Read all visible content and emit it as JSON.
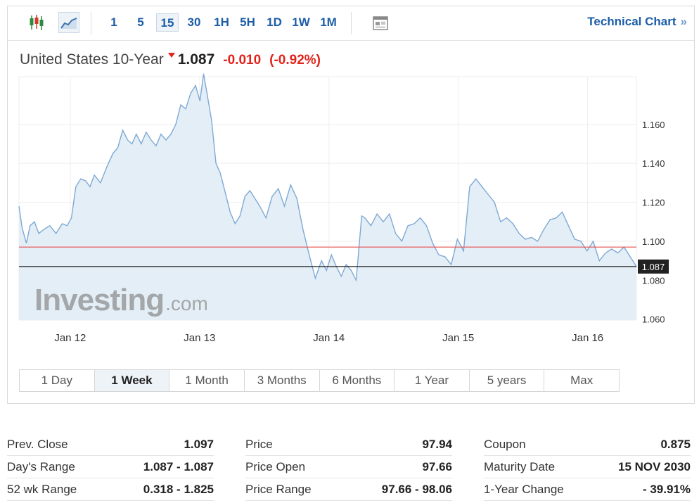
{
  "toolbar": {
    "timeframes": [
      {
        "label": "1"
      },
      {
        "label": "5"
      },
      {
        "label": "15",
        "active": true
      },
      {
        "label": "30"
      },
      {
        "label": "1H"
      },
      {
        "label": "5H"
      },
      {
        "label": "1D"
      },
      {
        "label": "1W"
      },
      {
        "label": "1M"
      }
    ],
    "technical_chart_label": "Technical Chart",
    "technical_chart_chevron": "»",
    "icons": [
      "candlestick-icon",
      "area-chart-icon",
      "news-icon"
    ]
  },
  "instrument": {
    "name": "United States 10-Year",
    "last": "1.087",
    "change": "-0.010",
    "change_pct": "(-0.92%)",
    "direction": "down"
  },
  "colors": {
    "line": "#7fa9d4",
    "fill": "#e4eef6",
    "prev_close_line": "#e84a4a",
    "last_price_line": "#222222",
    "last_badge_bg": "#222222",
    "negative": "#e2231a",
    "link": "#1b5da7"
  },
  "chart_data": {
    "type": "area",
    "x_ticks": [
      "Jan 12",
      "Jan 13",
      "Jan 14",
      "Jan 15",
      "Jan 16"
    ],
    "y_ticks": [
      "1.060",
      "1.080",
      "1.100",
      "1.120",
      "1.140",
      "1.160"
    ],
    "ylim": [
      1.0595,
      1.1845
    ],
    "xlim": [
      0,
      100
    ],
    "prev_close": 1.097,
    "last_price": 1.087,
    "last_price_label": "1.087",
    "watermark": {
      "brand": "Investing",
      "suffix": ".com"
    },
    "x": [
      0,
      0.5,
      1.2,
      1.8,
      2.5,
      3.2,
      4.0,
      5.0,
      6.0,
      7.0,
      7.8,
      8.5,
      9.2,
      10.0,
      10.8,
      11.5,
      12.2,
      13.2,
      14.2,
      15.2,
      16.0,
      16.8,
      17.6,
      18.3,
      19.0,
      19.8,
      20.6,
      21.4,
      22.2,
      23.0,
      23.8,
      24.6,
      25.4,
      26.2,
      27.0,
      27.8,
      28.6,
      29.3,
      29.9,
      30.5,
      31.2,
      31.9,
      32.6,
      33.4,
      34.2,
      35.0,
      35.8,
      36.6,
      37.4,
      38.2,
      39.0,
      40.0,
      41.0,
      42.0,
      43.0,
      44.0,
      45.0,
      46.0,
      47.0,
      48.0,
      49.0,
      49.8,
      50.6,
      51.4,
      52.2,
      53.0,
      53.8,
      54.6,
      55.1,
      55.5,
      56.0,
      57.0,
      58.0,
      59.0,
      60.0,
      61.0,
      62.0,
      63.0,
      64.0,
      65.0,
      66.0,
      67.0,
      68.0,
      69.0,
      70.0,
      71.0,
      72.0,
      73.0,
      74.0,
      75.0,
      76.0,
      77.0,
      78.0,
      79.0,
      80.0,
      81.0,
      82.0,
      83.0,
      84.0,
      85.0,
      86.0,
      87.0,
      88.0,
      89.0,
      90.0,
      91.0,
      92.0,
      93.0,
      94.0,
      95.0,
      96.0,
      97.0,
      98.0,
      99.0,
      100.0
    ],
    "y": [
      1.118,
      1.107,
      1.099,
      1.108,
      1.11,
      1.104,
      1.106,
      1.108,
      1.104,
      1.109,
      1.108,
      1.112,
      1.128,
      1.132,
      1.131,
      1.128,
      1.134,
      1.13,
      1.138,
      1.145,
      1.148,
      1.157,
      1.152,
      1.15,
      1.155,
      1.15,
      1.156,
      1.152,
      1.149,
      1.155,
      1.152,
      1.155,
      1.16,
      1.17,
      1.168,
      1.176,
      1.18,
      1.172,
      1.186,
      1.175,
      1.162,
      1.14,
      1.135,
      1.125,
      1.115,
      1.109,
      1.113,
      1.123,
      1.126,
      1.122,
      1.118,
      1.112,
      1.123,
      1.127,
      1.118,
      1.129,
      1.122,
      1.106,
      1.093,
      1.081,
      1.09,
      1.085,
      1.093,
      1.087,
      1.082,
      1.088,
      1.085,
      1.08,
      1.098,
      1.113,
      1.112,
      1.108,
      1.114,
      1.11,
      1.114,
      1.104,
      1.1,
      1.108,
      1.109,
      1.112,
      1.108,
      1.099,
      1.093,
      1.092,
      1.088,
      1.101,
      1.095,
      1.128,
      1.132,
      1.128,
      1.124,
      1.12,
      1.11,
      1.112,
      1.109,
      1.104,
      1.101,
      1.102,
      1.1,
      1.106,
      1.111,
      1.112,
      1.115,
      1.108,
      1.101,
      1.1,
      1.095,
      1.1,
      1.09,
      1.094,
      1.096,
      1.094,
      1.097,
      1.092,
      1.087
    ]
  },
  "ranges": [
    {
      "label": "1 Day"
    },
    {
      "label": "1 Week",
      "active": true
    },
    {
      "label": "1 Month"
    },
    {
      "label": "3 Months"
    },
    {
      "label": "6 Months"
    },
    {
      "label": "1 Year"
    },
    {
      "label": "5 years"
    },
    {
      "label": "Max"
    }
  ],
  "stats": [
    [
      {
        "label": "Prev. Close",
        "value": "1.097"
      },
      {
        "label": "Day's Range",
        "value": "1.087 - 1.087"
      },
      {
        "label": "52 wk Range",
        "value": "0.318 - 1.825"
      }
    ],
    [
      {
        "label": "Price",
        "value": "97.94"
      },
      {
        "label": "Price Open",
        "value": "97.66"
      },
      {
        "label": "Price Range",
        "value": "97.66 - 98.06"
      }
    ],
    [
      {
        "label": "Coupon",
        "value": "0.875"
      },
      {
        "label": "Maturity Date",
        "value": "15 NOV 2030"
      },
      {
        "label": "1-Year Change",
        "value": "- 39.91%"
      }
    ]
  ]
}
